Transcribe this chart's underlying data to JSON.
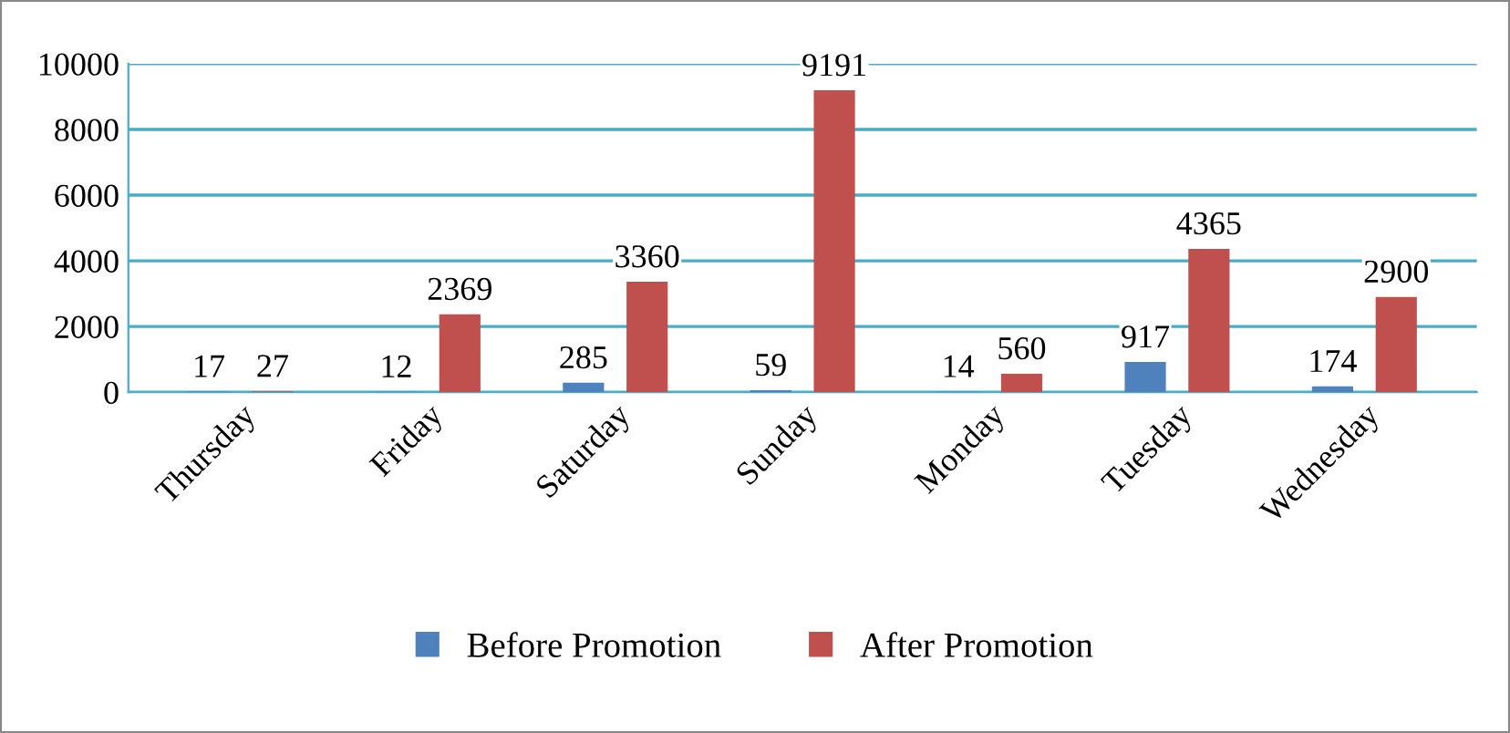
{
  "chart_data": {
    "type": "bar",
    "categories": [
      "Thursday",
      "Friday",
      "Saturday",
      "Sunday",
      "Monday",
      "Tuesday",
      "Wednesday"
    ],
    "series": [
      {
        "name": "Before Promotion",
        "color": "#4f81bd",
        "values": [
          17,
          12,
          285,
          59,
          14,
          917,
          174
        ]
      },
      {
        "name": "After Promotion",
        "color": "#c0504d",
        "values": [
          27,
          2369,
          3360,
          9191,
          560,
          4365,
          2900
        ]
      }
    ],
    "ylim": [
      0,
      10000
    ],
    "yticks": [
      0,
      2000,
      4000,
      6000,
      8000,
      10000
    ],
    "grid": "y",
    "legend": "bottom",
    "data_labels": true
  }
}
